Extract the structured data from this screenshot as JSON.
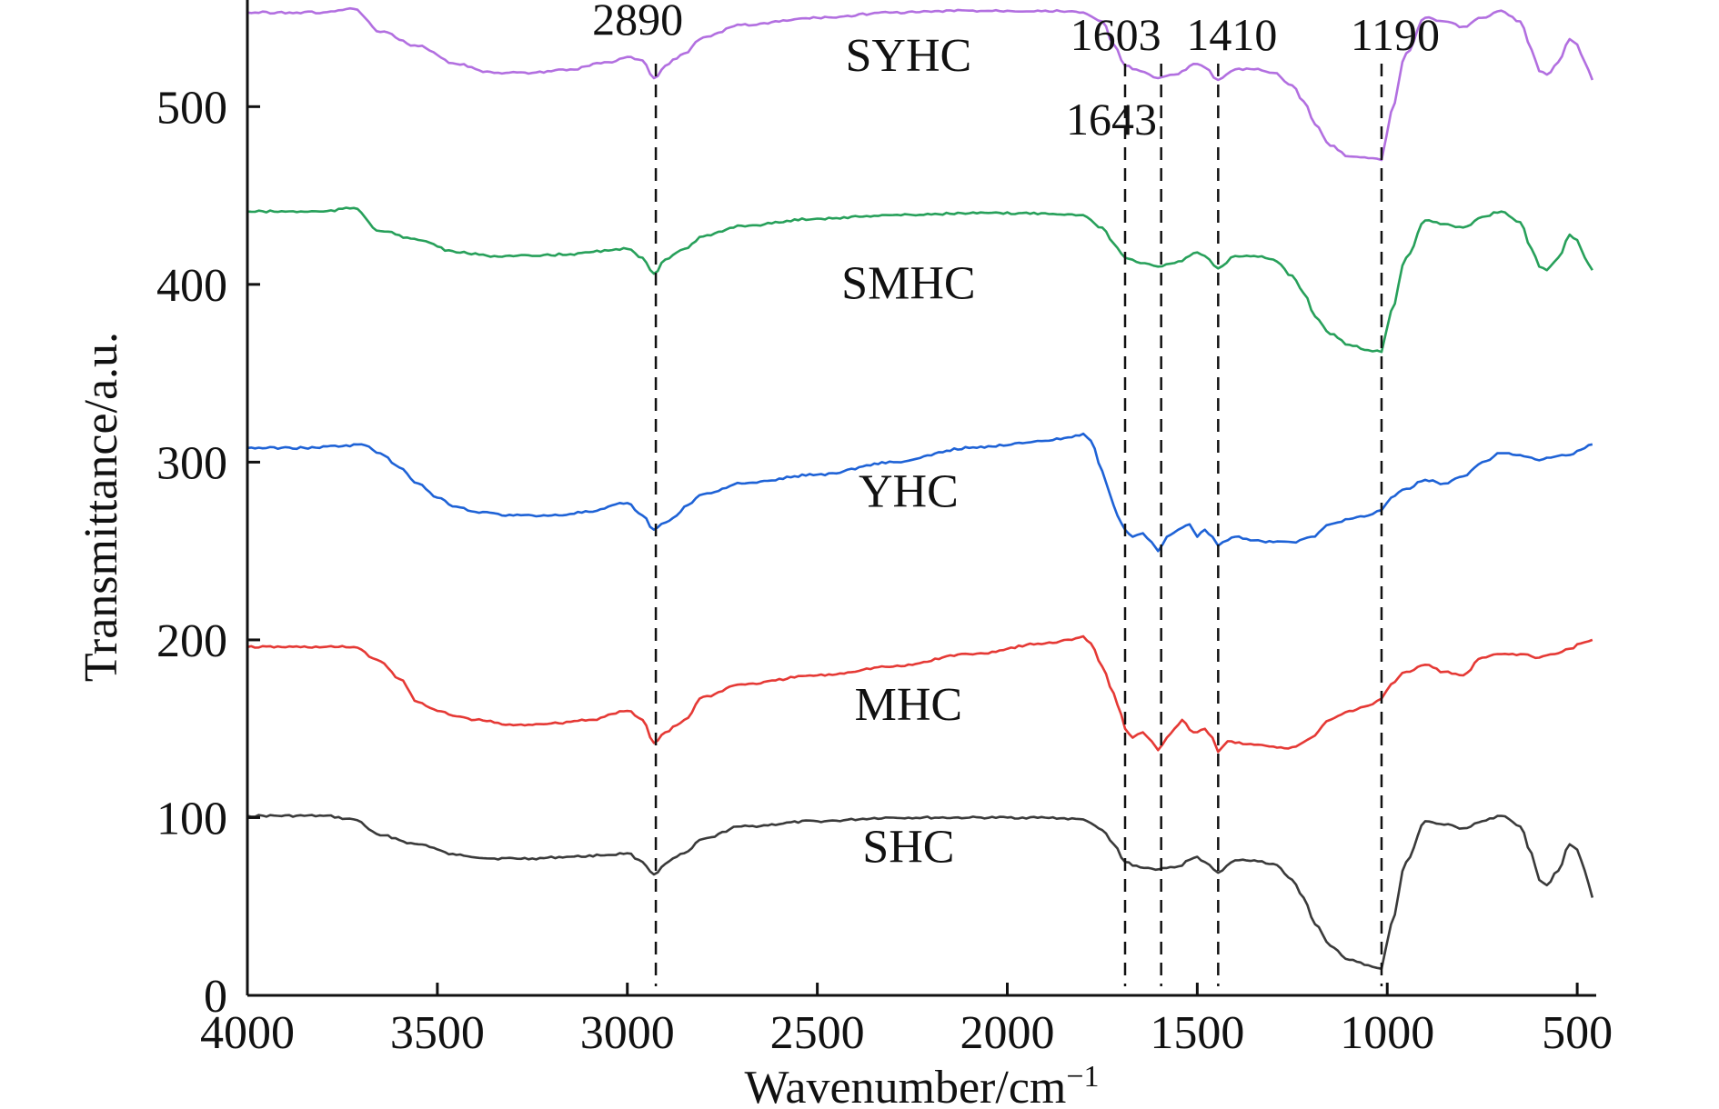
{
  "chart_data": {
    "type": "line",
    "xlabel": "Wavenumber/cm",
    "xlabel_sup": "−1",
    "ylabel": "Transmittance/a.u.",
    "xlim": [
      4000,
      450
    ],
    "ylim": [
      0,
      560
    ],
    "x_ticks": [
      4000,
      3500,
      3000,
      2500,
      2000,
      1500,
      1000,
      500
    ],
    "x_tick_labels": [
      "4000",
      "3500",
      "3000",
      "2500",
      "2000",
      "1500",
      "1000",
      "500"
    ],
    "y_ticks": [
      0,
      100,
      200,
      300,
      400,
      500
    ],
    "y_tick_labels": [
      "0",
      "100",
      "200",
      "300",
      "400",
      "500"
    ],
    "grid": false,
    "annotations": [
      {
        "label": "2890",
        "x": 2925
      },
      {
        "label": "1643",
        "x": 1690
      },
      {
        "label": "1603",
        "x": 1595
      },
      {
        "label": "1410",
        "x": 1445
      },
      {
        "label": "1190",
        "x": 1015
      }
    ],
    "series": [
      {
        "name": "SHC",
        "color": "#3a3a3a",
        "label_x": 2260,
        "label_y": 75,
        "x": [
          4000,
          3800,
          3720,
          3650,
          3550,
          3450,
          3350,
          3250,
          3150,
          3050,
          3000,
          2960,
          2930,
          2900,
          2870,
          2850,
          2800,
          2700,
          2500,
          2300,
          2100,
          1900,
          1800,
          1750,
          1720,
          1690,
          1650,
          1600,
          1560,
          1500,
          1480,
          1445,
          1400,
          1350,
          1300,
          1250,
          1220,
          1190,
          1150,
          1100,
          1050,
          1015,
          990,
          950,
          900,
          850,
          800,
          750,
          700,
          650,
          620,
          600,
          580,
          550,
          520,
          500,
          480,
          460
        ],
        "y": [
          101,
          101,
          99,
          90,
          85,
          79,
          77,
          77,
          78,
          79,
          80,
          75,
          68,
          74,
          78,
          80,
          88,
          95,
          98,
          100,
          100,
          100,
          99,
          93,
          85,
          75,
          72,
          71,
          72,
          78,
          75,
          69,
          76,
          76,
          74,
          65,
          55,
          40,
          28,
          20,
          17,
          15,
          40,
          75,
          98,
          96,
          94,
          98,
          101,
          95,
          80,
          65,
          62,
          70,
          85,
          82,
          70,
          55
        ]
      },
      {
        "name": "MHC",
        "color": "#e53935",
        "label_x": 2260,
        "label_y": 155,
        "x": [
          4000,
          3800,
          3720,
          3650,
          3600,
          3550,
          3500,
          3450,
          3400,
          3300,
          3200,
          3100,
          3000,
          2960,
          2930,
          2900,
          2870,
          2850,
          2800,
          2700,
          2500,
          2300,
          2100,
          1900,
          1830,
          1800,
          1780,
          1750,
          1720,
          1700,
          1690,
          1670,
          1643,
          1620,
          1603,
          1580,
          1560,
          1540,
          1510,
          1480,
          1460,
          1445,
          1420,
          1400,
          1350,
          1300,
          1270,
          1240,
          1200,
          1150,
          1100,
          1050,
          1015,
          990,
          950,
          900,
          850,
          800,
          750,
          700,
          650,
          600,
          560,
          520,
          490,
          460
        ],
        "y": [
          196,
          196,
          196,
          188,
          178,
          165,
          160,
          157,
          155,
          152,
          153,
          155,
          160,
          155,
          142,
          148,
          152,
          155,
          168,
          175,
          180,
          185,
          192,
          198,
          200,
          202,
          198,
          185,
          170,
          158,
          150,
          145,
          148,
          143,
          138,
          145,
          150,
          155,
          148,
          150,
          145,
          137,
          143,
          142,
          141,
          140,
          139,
          140,
          145,
          155,
          160,
          163,
          167,
          175,
          182,
          186,
          182,
          180,
          190,
          192,
          192,
          190,
          192,
          195,
          198,
          200
        ]
      },
      {
        "name": "YHC",
        "color": "#1e62d6",
        "label_x": 2260,
        "label_y": 275,
        "x": [
          4000,
          3850,
          3750,
          3700,
          3650,
          3600,
          3550,
          3500,
          3450,
          3400,
          3300,
          3200,
          3100,
          3000,
          2960,
          2930,
          2900,
          2870,
          2850,
          2800,
          2700,
          2500,
          2300,
          2100,
          1900,
          1830,
          1800,
          1780,
          1750,
          1730,
          1710,
          1690,
          1670,
          1643,
          1620,
          1603,
          1580,
          1550,
          1520,
          1500,
          1480,
          1460,
          1445,
          1420,
          1400,
          1350,
          1300,
          1250,
          1200,
          1150,
          1100,
          1050,
          1015,
          990,
          950,
          900,
          850,
          800,
          750,
          700,
          650,
          600,
          560,
          520,
          490,
          460
        ],
        "y": [
          308,
          308,
          309,
          310,
          305,
          297,
          288,
          280,
          275,
          272,
          270,
          270,
          272,
          277,
          270,
          262,
          266,
          270,
          275,
          282,
          288,
          293,
          300,
          308,
          312,
          314,
          316,
          312,
          295,
          282,
          270,
          262,
          258,
          260,
          255,
          250,
          258,
          262,
          265,
          258,
          262,
          258,
          253,
          256,
          258,
          256,
          255,
          255,
          258,
          265,
          268,
          270,
          273,
          280,
          285,
          290,
          288,
          292,
          300,
          305,
          304,
          301,
          303,
          304,
          307,
          310
        ]
      },
      {
        "name": "SMHC",
        "color": "#27a05a",
        "label_x": 2260,
        "label_y": 392,
        "x": [
          4000,
          3800,
          3720,
          3650,
          3550,
          3450,
          3350,
          3250,
          3150,
          3050,
          3000,
          2960,
          2930,
          2900,
          2870,
          2850,
          2800,
          2700,
          2500,
          2300,
          2100,
          1900,
          1800,
          1750,
          1720,
          1690,
          1650,
          1603,
          1560,
          1500,
          1480,
          1445,
          1400,
          1350,
          1300,
          1250,
          1220,
          1190,
          1150,
          1100,
          1050,
          1015,
          990,
          950,
          900,
          850,
          800,
          750,
          700,
          650,
          620,
          600,
          580,
          550,
          520,
          500,
          480,
          460
        ],
        "y": [
          441,
          441,
          443,
          430,
          425,
          418,
          416,
          416,
          417,
          419,
          420,
          415,
          406,
          414,
          418,
          420,
          427,
          433,
          437,
          439,
          440,
          440,
          439,
          432,
          423,
          415,
          412,
          410,
          412,
          418,
          416,
          409,
          416,
          416,
          414,
          405,
          395,
          382,
          372,
          366,
          363,
          362,
          385,
          415,
          436,
          434,
          432,
          438,
          441,
          435,
          420,
          410,
          408,
          415,
          428,
          425,
          415,
          408
        ]
      },
      {
        "name": "SYHC",
        "color": "#b26fe0",
        "label_x": 2260,
        "label_y": 520,
        "x": [
          4000,
          3800,
          3720,
          3650,
          3550,
          3450,
          3350,
          3250,
          3150,
          3050,
          3000,
          2960,
          2930,
          2900,
          2870,
          2850,
          2800,
          2700,
          2500,
          2300,
          2100,
          1900,
          1800,
          1750,
          1720,
          1690,
          1650,
          1603,
          1560,
          1500,
          1480,
          1445,
          1400,
          1350,
          1300,
          1250,
          1220,
          1190,
          1150,
          1100,
          1050,
          1015,
          990,
          950,
          900,
          850,
          800,
          750,
          700,
          650,
          620,
          600,
          580,
          550,
          520,
          500,
          480,
          460
        ],
        "y": [
          553,
          553,
          555,
          542,
          534,
          524,
          519,
          519,
          521,
          525,
          528,
          526,
          516,
          523,
          527,
          530,
          539,
          546,
          550,
          553,
          554,
          554,
          553,
          548,
          535,
          523,
          520,
          516,
          518,
          524,
          522,
          515,
          521,
          521,
          519,
          512,
          503,
          490,
          478,
          472,
          471,
          470,
          497,
          530,
          550,
          548,
          545,
          550,
          554,
          548,
          532,
          520,
          518,
          525,
          538,
          535,
          525,
          515
        ]
      }
    ]
  }
}
